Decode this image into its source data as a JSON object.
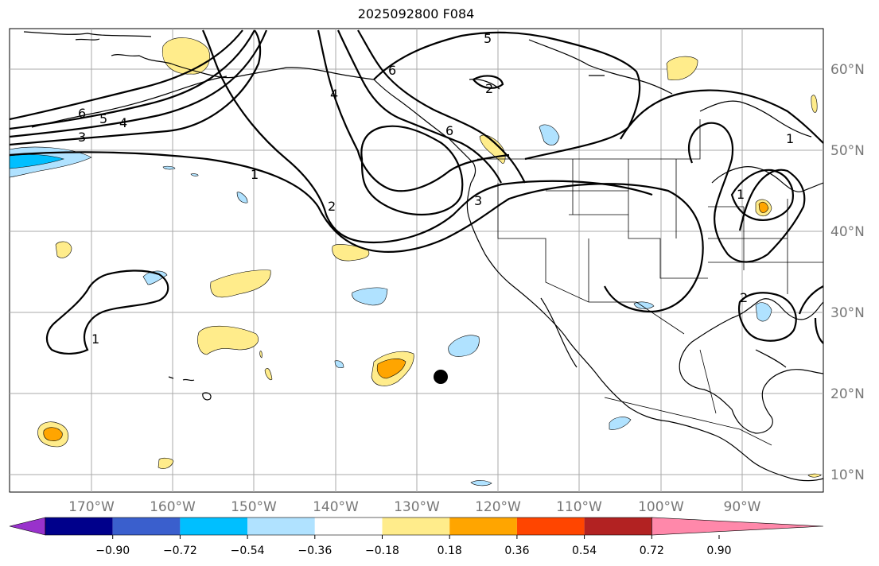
{
  "title": "2025092800 F084",
  "longitude_labels": [
    "170°W",
    "160°W",
    "150°W",
    "140°W",
    "130°W",
    "120°W",
    "110°W",
    "100°W",
    "90°W"
  ],
  "latitude_labels": [
    "60°N",
    "50°N",
    "40°N",
    "30°N",
    "20°N",
    "10°N"
  ],
  "colorbar": {
    "ticks": [
      "−0.90",
      "−0.72",
      "−0.54",
      "−0.36",
      "−0.18",
      "0.18",
      "0.36",
      "0.54",
      "0.72",
      "0.90"
    ],
    "colors": [
      "#9932cc",
      "#00008b",
      "#3a5fcd",
      "#00bfff",
      "#b0e2ff",
      "#ffffff",
      "#ffec8b",
      "#ffa500",
      "#ff4500",
      "#b22222",
      "#ff88aa"
    ]
  },
  "contour_labels": [
    "6",
    "5",
    "4",
    "3",
    "1",
    "2",
    "4",
    "6",
    "5",
    "2",
    "6",
    "3",
    "1",
    "1",
    "2",
    "1"
  ]
}
